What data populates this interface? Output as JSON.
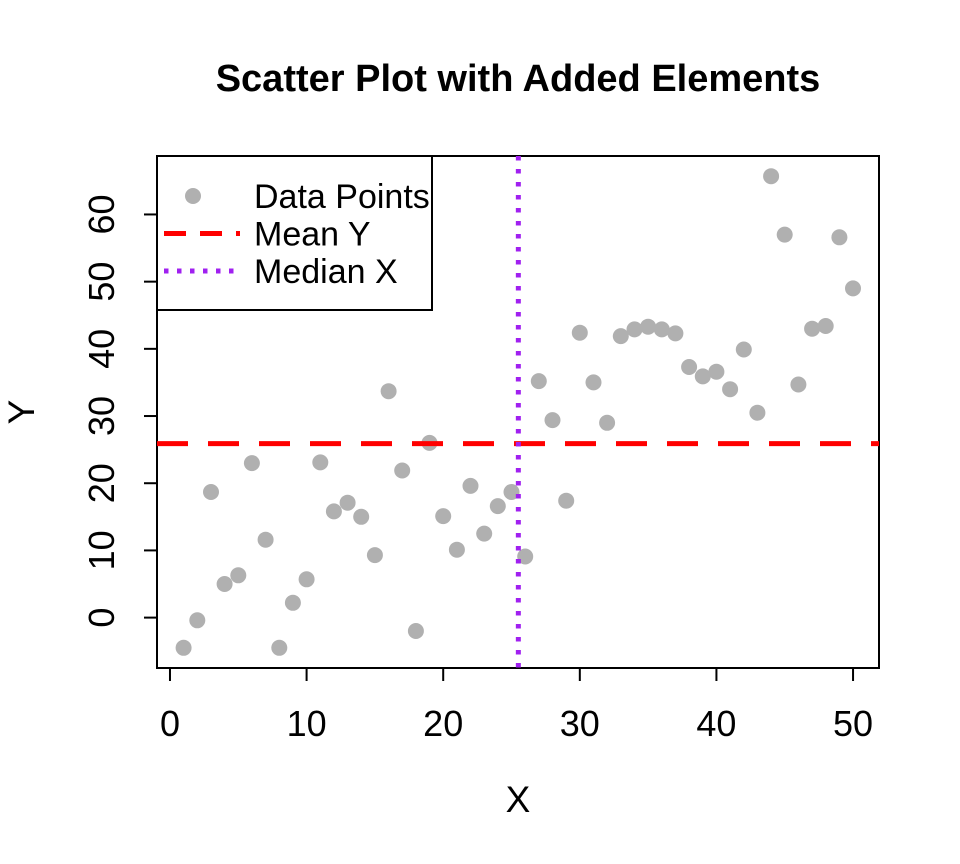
{
  "chart_data": {
    "type": "scatter",
    "title": "Scatter Plot with Added Elements",
    "xlabel": "X",
    "ylabel": "Y",
    "x_ticks": [
      0,
      10,
      20,
      30,
      40,
      50
    ],
    "y_ticks": [
      0,
      10,
      20,
      30,
      40,
      50,
      60
    ],
    "xlim": [
      -0.95,
      51.9
    ],
    "ylim": [
      -7.5,
      68.7
    ],
    "grid": false,
    "background": "#ffffff",
    "series": [
      {
        "name": "Data Points",
        "marker": "filled-circle",
        "color": "#b0b0b0",
        "points": [
          [
            1,
            -4.5
          ],
          [
            2,
            -0.4
          ],
          [
            3,
            18.7
          ],
          [
            4,
            5.0
          ],
          [
            5,
            6.3
          ],
          [
            6,
            23.0
          ],
          [
            7,
            11.6
          ],
          [
            8,
            -4.5
          ],
          [
            9,
            2.2
          ],
          [
            10,
            5.7
          ],
          [
            11,
            23.1
          ],
          [
            12,
            15.8
          ],
          [
            13,
            17.1
          ],
          [
            14,
            15.0
          ],
          [
            15,
            9.3
          ],
          [
            16,
            33.7
          ],
          [
            17,
            21.9
          ],
          [
            18,
            -2.0
          ],
          [
            19,
            26.0
          ],
          [
            20,
            15.1
          ],
          [
            21,
            10.1
          ],
          [
            22,
            19.6
          ],
          [
            23,
            12.5
          ],
          [
            24,
            16.6
          ],
          [
            25,
            18.7
          ],
          [
            26,
            9.1
          ],
          [
            27,
            35.2
          ],
          [
            28,
            29.4
          ],
          [
            29,
            17.4
          ],
          [
            30,
            42.4
          ],
          [
            31,
            35.0
          ],
          [
            32,
            29.0
          ],
          [
            33,
            41.9
          ],
          [
            34,
            42.9
          ],
          [
            35,
            43.3
          ],
          [
            36,
            42.9
          ],
          [
            37,
            42.3
          ],
          [
            38,
            37.3
          ],
          [
            39,
            35.9
          ],
          [
            40,
            36.6
          ],
          [
            41,
            34.0
          ],
          [
            42,
            39.9
          ],
          [
            43,
            30.5
          ],
          [
            44,
            65.7
          ],
          [
            45,
            57.0
          ],
          [
            46,
            34.7
          ],
          [
            47,
            43.0
          ],
          [
            48,
            43.4
          ],
          [
            49,
            56.6
          ],
          [
            50,
            49.0
          ]
        ]
      }
    ],
    "reference_lines": [
      {
        "name": "Mean Y",
        "orientation": "horizontal",
        "value": 25.9,
        "color": "#ff0000",
        "style": "dashed"
      },
      {
        "name": "Median X",
        "orientation": "vertical",
        "value": 25.5,
        "color": "#a020f0",
        "style": "dotted"
      }
    ],
    "legend": {
      "position": "top-left",
      "items": [
        {
          "label": "Data Points",
          "marker": "point",
          "color": "#b0b0b0"
        },
        {
          "label": "Mean Y",
          "marker": "dashed-line",
          "color": "#ff0000"
        },
        {
          "label": "Median X",
          "marker": "dotted-line",
          "color": "#a020f0"
        }
      ]
    }
  }
}
